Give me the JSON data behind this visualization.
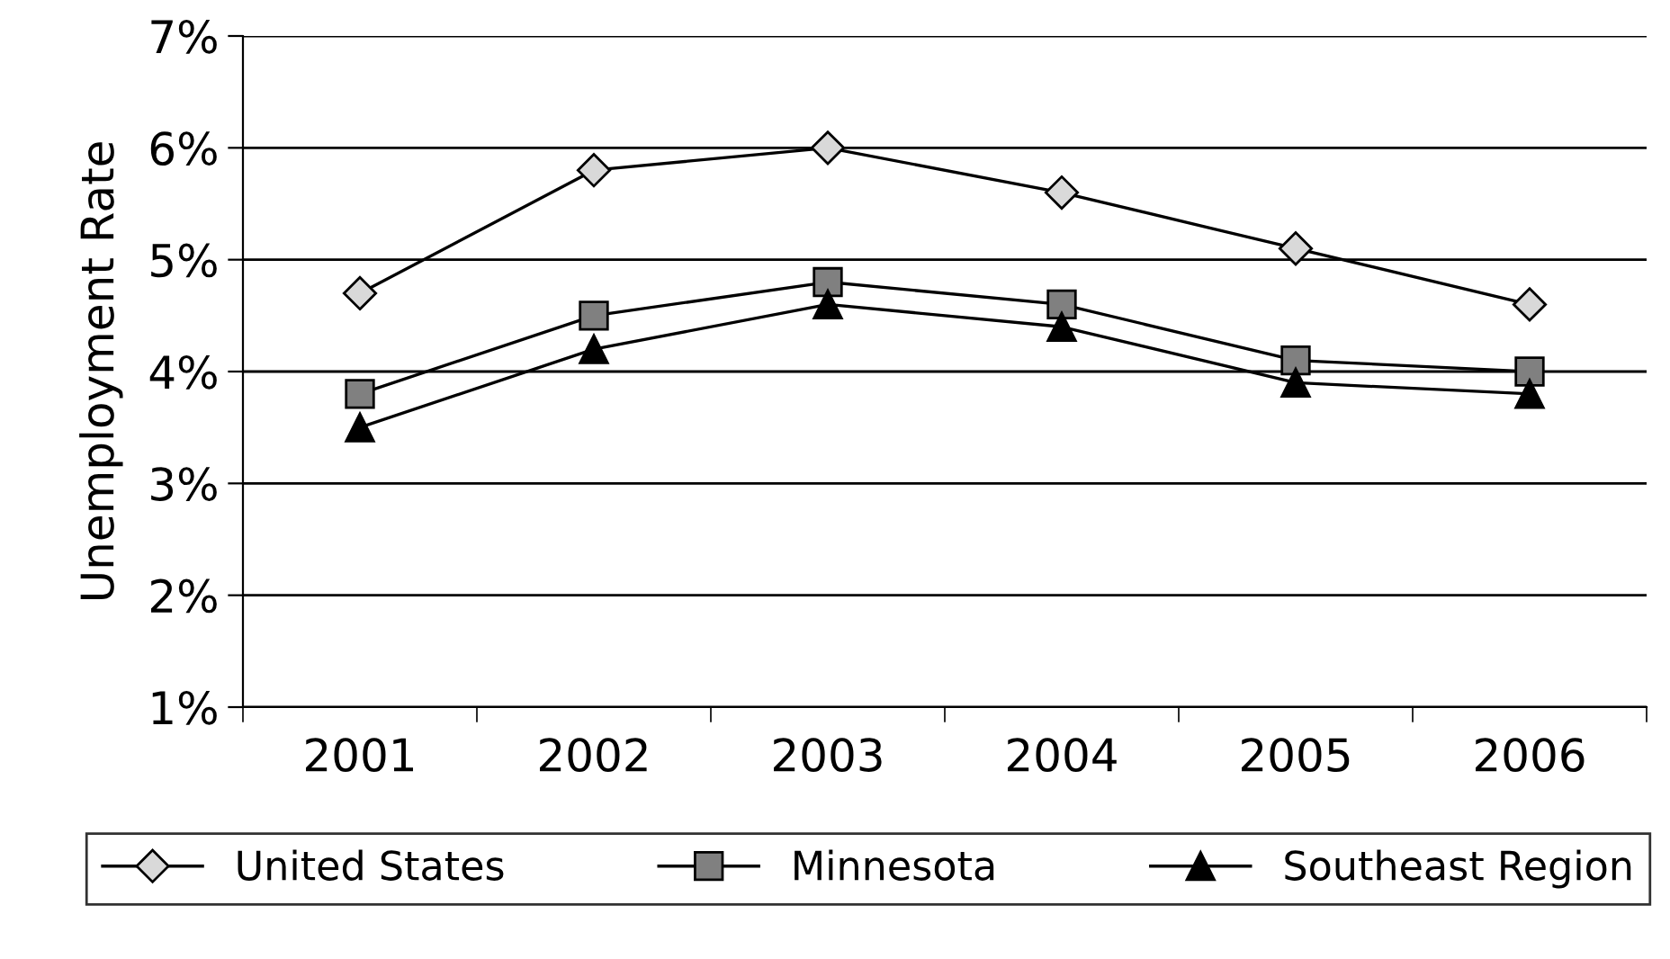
{
  "chart_data": {
    "type": "line",
    "ylabel": "Unemployment Rate",
    "categories": [
      "2001",
      "2002",
      "2003",
      "2004",
      "2005",
      "2006"
    ],
    "series": [
      {
        "name": "United States",
        "color": "#d9d9d9",
        "marker": "diamond",
        "values": [
          4.7,
          5.8,
          6.0,
          5.6,
          5.1,
          4.6
        ]
      },
      {
        "name": "Minnesota",
        "color": "#808080",
        "marker": "square",
        "values": [
          3.8,
          4.5,
          4.8,
          4.6,
          4.1,
          4.0
        ]
      },
      {
        "name": "Southeast Region",
        "color": "#000000",
        "marker": "triangle",
        "values": [
          3.5,
          4.2,
          4.6,
          4.4,
          3.9,
          3.8
        ]
      }
    ],
    "ylim": [
      1,
      7
    ],
    "yticks": [
      {
        "value": 1,
        "label": "1%"
      },
      {
        "value": 2,
        "label": "2%"
      },
      {
        "value": 3,
        "label": "3%"
      },
      {
        "value": 4,
        "label": "4%"
      },
      {
        "value": 5,
        "label": "5%"
      },
      {
        "value": 6,
        "label": "6%"
      },
      {
        "value": 7,
        "label": "7%"
      }
    ],
    "grid": "y",
    "legend": "bottom",
    "line_style": "solid"
  }
}
